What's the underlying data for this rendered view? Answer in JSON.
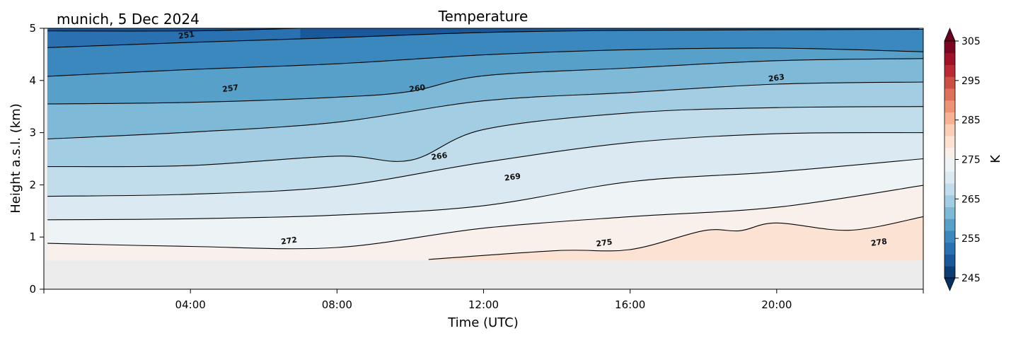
{
  "chart_data": {
    "type": "heatmap",
    "title": "Temperature",
    "subtitle": "munich, 5 Dec 2024",
    "xlabel": "Time (UTC)",
    "ylabel": "Height a.s.l. (km)",
    "xlim": [
      "00:00",
      "24:00"
    ],
    "ylim": [
      0,
      5
    ],
    "x_ticks": [
      "04:00",
      "08:00",
      "12:00",
      "16:00",
      "20:00"
    ],
    "y_ticks": [
      "0",
      "1",
      "2",
      "3",
      "4",
      "5"
    ],
    "colorbar": {
      "label": "K",
      "range": [
        245,
        305
      ],
      "ticks": [
        "245",
        "255",
        "265",
        "275",
        "285",
        "295",
        "305"
      ],
      "extend": "both",
      "colormap": "RdBu_r"
    },
    "contour_levels": [
      251,
      254,
      257,
      260,
      263,
      266,
      269,
      272,
      275,
      278
    ],
    "contour_lines": [
      {
        "level": 251,
        "points": [
          [
            0.1,
            4.95
          ],
          [
            4,
            4.95
          ],
          [
            7,
            5.0
          ]
        ]
      },
      {
        "level": 254,
        "points": [
          [
            0.1,
            4.63
          ],
          [
            4,
            4.73
          ],
          [
            8,
            4.82
          ],
          [
            12,
            4.92
          ],
          [
            16,
            4.96
          ],
          [
            24,
            4.98
          ]
        ]
      },
      {
        "level": 257,
        "points": [
          [
            0.1,
            4.08
          ],
          [
            4,
            4.21
          ],
          [
            8,
            4.32
          ],
          [
            12,
            4.49
          ],
          [
            16,
            4.59
          ],
          [
            20,
            4.62
          ],
          [
            24,
            4.55
          ]
        ]
      },
      {
        "level": 260,
        "points": [
          [
            0.1,
            3.55
          ],
          [
            4,
            3.58
          ],
          [
            8,
            3.68
          ],
          [
            10,
            3.79
          ],
          [
            12,
            4.09
          ],
          [
            16,
            4.24
          ],
          [
            20,
            4.38
          ],
          [
            24,
            4.42
          ]
        ]
      },
      {
        "level": 263,
        "points": [
          [
            0.1,
            2.88
          ],
          [
            4,
            3.01
          ],
          [
            8,
            3.2
          ],
          [
            12,
            3.61
          ],
          [
            16,
            3.77
          ],
          [
            20,
            3.93
          ],
          [
            24,
            3.97
          ]
        ]
      },
      {
        "level": 266,
        "points": [
          [
            0.1,
            2.35
          ],
          [
            4,
            2.37
          ],
          [
            8,
            2.55
          ],
          [
            10,
            2.47
          ],
          [
            12,
            3.06
          ],
          [
            16,
            3.38
          ],
          [
            20,
            3.48
          ],
          [
            24,
            3.5
          ]
        ]
      },
      {
        "level": 269,
        "points": [
          [
            0.1,
            1.78
          ],
          [
            4,
            1.82
          ],
          [
            8,
            1.97
          ],
          [
            12,
            2.43
          ],
          [
            16,
            2.81
          ],
          [
            20,
            2.98
          ],
          [
            24,
            3.0
          ]
        ]
      },
      {
        "level": 272,
        "points": [
          [
            0.1,
            1.33
          ],
          [
            4,
            1.35
          ],
          [
            8,
            1.42
          ],
          [
            12,
            1.6
          ],
          [
            16,
            2.06
          ],
          [
            20,
            2.25
          ],
          [
            24,
            2.5
          ]
        ]
      },
      {
        "level": 275,
        "points": [
          [
            0.1,
            0.88
          ],
          [
            4,
            0.82
          ],
          [
            8,
            0.8
          ],
          [
            12,
            1.17
          ],
          [
            16,
            1.39
          ],
          [
            20,
            1.57
          ],
          [
            24,
            1.99
          ]
        ]
      },
      {
        "level": 278,
        "points": [
          [
            10.5,
            0.57
          ],
          [
            14,
            0.74
          ],
          [
            16,
            0.76
          ],
          [
            18,
            1.12
          ],
          [
            19,
            1.12
          ],
          [
            20,
            1.27
          ],
          [
            22,
            1.13
          ],
          [
            24,
            1.39
          ]
        ]
      }
    ],
    "contour_labels": [
      {
        "text": "251",
        "x": 3.9,
        "y": 4.82
      },
      {
        "text": "257",
        "x": 5.1,
        "y": 3.8
      },
      {
        "text": "260",
        "x": 10.2,
        "y": 3.8
      },
      {
        "text": "263",
        "x": 20.0,
        "y": 4.0
      },
      {
        "text": "266",
        "x": 10.8,
        "y": 2.5
      },
      {
        "text": "269",
        "x": 12.8,
        "y": 2.1
      },
      {
        "text": "272",
        "x": 6.7,
        "y": 0.88
      },
      {
        "text": "275",
        "x": 15.3,
        "y": 0.84
      },
      {
        "text": "278",
        "x": 22.8,
        "y": 0.85
      }
    ],
    "grid": false
  },
  "colors": {
    "ground": "#ececec",
    "missing": "#f0f0f0",
    "contour_line": "#000000"
  }
}
